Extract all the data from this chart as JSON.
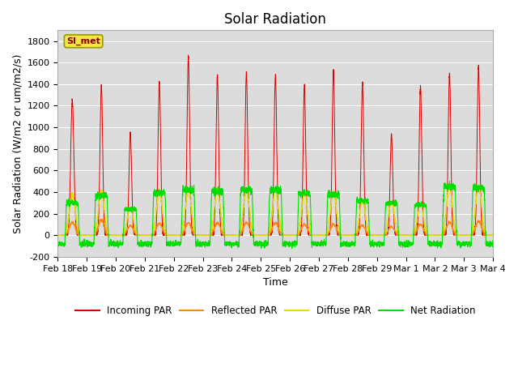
{
  "title": "Solar Radiation",
  "ylabel": "Solar Radiation (W/m2 or um/m2/s)",
  "xlabel": "Time",
  "ylim": [
    -200,
    1900
  ],
  "yticks": [
    -200,
    0,
    200,
    400,
    600,
    800,
    1000,
    1200,
    1400,
    1600,
    1800
  ],
  "bg_color": "#dcdcdc",
  "legend_label": "SI_met",
  "series_colors": {
    "incoming": "#dd0000",
    "reflected": "#ff8800",
    "diffuse": "#dddd00",
    "net": "#00dd00"
  },
  "legend_entries": [
    "Incoming PAR",
    "Reflected PAR",
    "Diffuse PAR",
    "Net Radiation"
  ],
  "legend_colors": [
    "#dd0000",
    "#ff8800",
    "#dddd00",
    "#00dd00"
  ],
  "title_fontsize": 12,
  "axis_label_fontsize": 9,
  "tick_fontsize": 8,
  "date_labels": [
    "Feb 18",
    "Feb 19",
    "Feb 20",
    "Feb 21",
    "Feb 22",
    "Feb 23",
    "Feb 24",
    "Feb 25",
    "Feb 26",
    "Feb 27",
    "Feb 28",
    "Feb 29",
    "Mar 1",
    "Mar 2",
    "Mar 3",
    "Mar 4"
  ],
  "incoming_peaks": [
    1250,
    1400,
    950,
    1420,
    1650,
    1480,
    1490,
    1490,
    1380,
    1510,
    1400,
    930,
    1380,
    1500,
    1560
  ],
  "incoming_widths": [
    0.055,
    0.045,
    0.045,
    0.045,
    0.045,
    0.045,
    0.045,
    0.045,
    0.045,
    0.045,
    0.045,
    0.045,
    0.045,
    0.045,
    0.045
  ],
  "net_day_values": [
    300,
    370,
    240,
    390,
    420,
    410,
    420,
    420,
    390,
    380,
    320,
    300,
    280,
    450,
    440
  ],
  "reflected_peaks": [
    120,
    140,
    90,
    110,
    115,
    115,
    115,
    115,
    100,
    100,
    90,
    80,
    100,
    120,
    130
  ],
  "diffuse_peaks": [
    380,
    400,
    250,
    400,
    420,
    420,
    420,
    420,
    390,
    400,
    320,
    310,
    290,
    450,
    450
  ],
  "night_net": -80,
  "points_per_day": 288
}
